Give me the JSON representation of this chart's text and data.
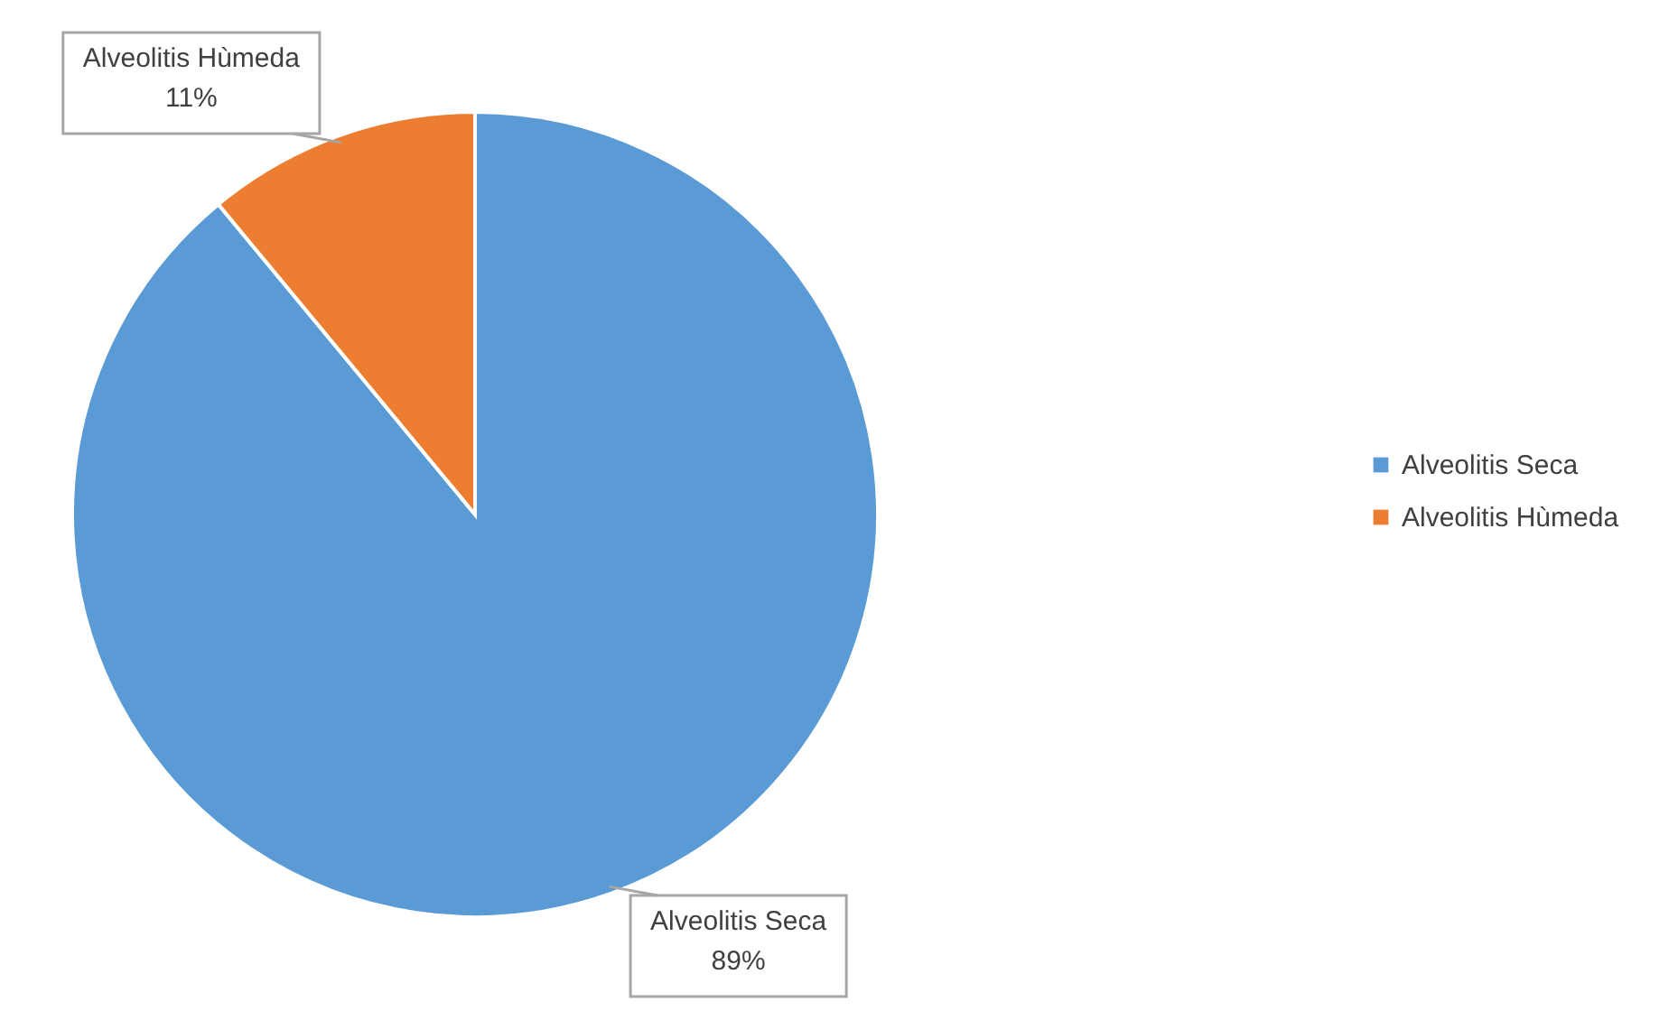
{
  "chart_data": {
    "type": "pie",
    "categories": [
      "Alveolitis Seca",
      "Alveolitis Hùmeda"
    ],
    "values": [
      89,
      11
    ],
    "value_labels": [
      "89%",
      "11%"
    ],
    "colors": [
      "#5b9bd5",
      "#ed7d31"
    ],
    "legend": "right"
  }
}
